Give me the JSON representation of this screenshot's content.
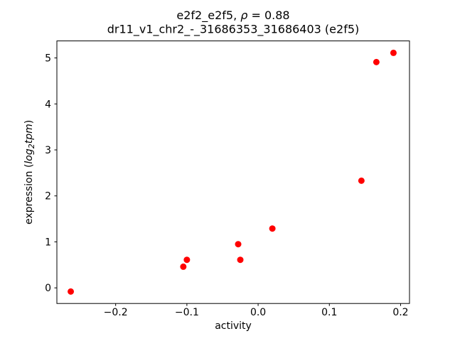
{
  "chart_data": {
    "type": "scatter",
    "title": "e2f2_e2f5, ρ = 0.88",
    "subtitle": "dr11_v1_chr2_-_31686353_31686403 (e2f5)",
    "title_rich": [
      {
        "t": "e2f2_e2f5, ",
        "i": 0
      },
      {
        "t": "ρ",
        "i": 1
      },
      {
        "t": " = 0.88",
        "i": 0
      }
    ],
    "xlabel": "activity",
    "ylabel": "expression (log₂tpm)",
    "ylabel_rich": [
      {
        "t": "expression (",
        "i": 0
      },
      {
        "t": "log",
        "i": 1
      },
      {
        "t": "2",
        "i": 1,
        "s": 1
      },
      {
        "t": "tpm",
        "i": 1
      },
      {
        "t": ")",
        "i": 0
      }
    ],
    "marker_color": "#ff0000",
    "axis_color": "#000000",
    "xlim": [
      -0.2825,
      0.2125
    ],
    "ylim": [
      -0.34,
      5.37
    ],
    "xticks": [
      -0.2,
      -0.1,
      0.0,
      0.1,
      0.2
    ],
    "xtick_labels": [
      "−0.2",
      "−0.1",
      "0.0",
      "0.1",
      "0.2"
    ],
    "yticks": [
      0,
      1,
      2,
      3,
      4,
      5
    ],
    "ytick_labels": [
      "0",
      "1",
      "2",
      "3",
      "4",
      "5"
    ],
    "points": [
      {
        "x": -0.263,
        "y": -0.08
      },
      {
        "x": -0.105,
        "y": 0.46
      },
      {
        "x": -0.1,
        "y": 0.61
      },
      {
        "x": -0.028,
        "y": 0.95
      },
      {
        "x": -0.025,
        "y": 0.61
      },
      {
        "x": 0.02,
        "y": 1.29
      },
      {
        "x": 0.145,
        "y": 2.33
      },
      {
        "x": 0.166,
        "y": 4.91
      },
      {
        "x": 0.19,
        "y": 5.11
      }
    ]
  }
}
